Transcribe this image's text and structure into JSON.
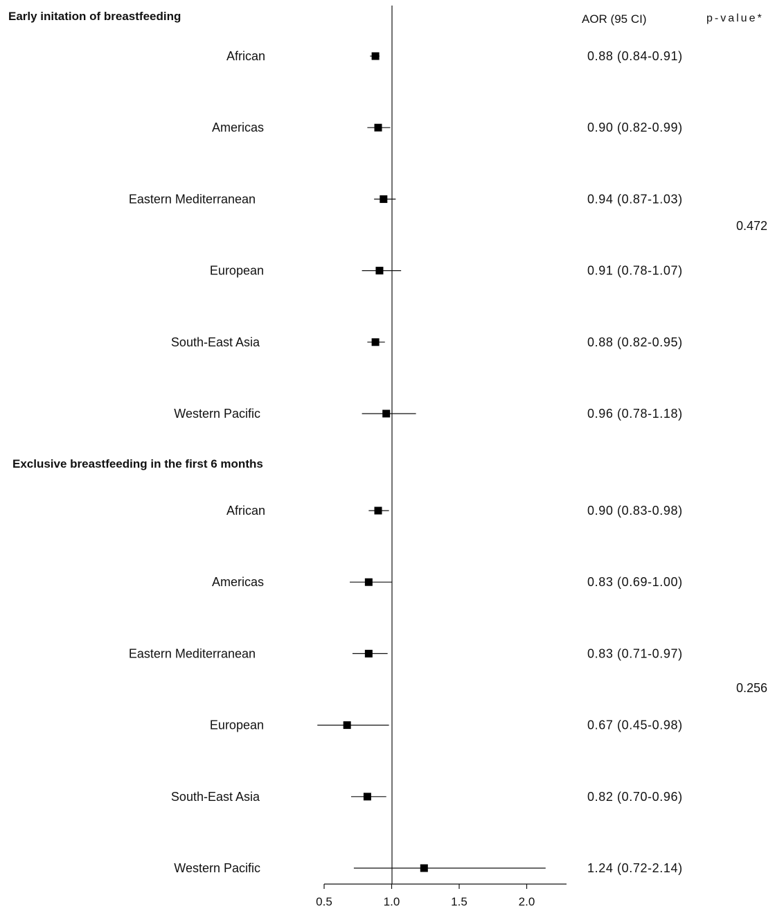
{
  "header": {
    "aor_label": "AOR (95 CI)",
    "pvalue_label": "p-value*"
  },
  "axis": {
    "ticks": [
      "0.5",
      "1.0",
      "1.5",
      "2.0"
    ]
  },
  "chart_data": {
    "type": "forest",
    "reference_line": 1.0,
    "xlim": [
      0.5,
      2.3
    ],
    "xticks": [
      0.5,
      1.0,
      1.5,
      2.0
    ],
    "groups": [
      {
        "title": "Early initation of breastfeeding",
        "p_value": "0.472",
        "rows": [
          {
            "label": "African",
            "aor": 0.88,
            "lo": 0.84,
            "hi": 0.91,
            "text": "0.88 (0.84-0.91)"
          },
          {
            "label": "Americas",
            "aor": 0.9,
            "lo": 0.82,
            "hi": 0.99,
            "text": "0.90 (0.82-0.99)"
          },
          {
            "label": "Eastern Mediterranean",
            "aor": 0.94,
            "lo": 0.87,
            "hi": 1.03,
            "text": "0.94 (0.87-1.03)"
          },
          {
            "label": "European",
            "aor": 0.91,
            "lo": 0.78,
            "hi": 1.07,
            "text": "0.91 (0.78-1.07)"
          },
          {
            "label": "South-East Asia",
            "aor": 0.88,
            "lo": 0.82,
            "hi": 0.95,
            "text": "0.88 (0.82-0.95)"
          },
          {
            "label": "Western Pacific",
            "aor": 0.96,
            "lo": 0.78,
            "hi": 1.18,
            "text": "0.96 (0.78-1.18)"
          }
        ]
      },
      {
        "title": "Exclusive breastfeeding in the first 6 months",
        "p_value": "0.256",
        "rows": [
          {
            "label": "African",
            "aor": 0.9,
            "lo": 0.83,
            "hi": 0.98,
            "text": "0.90 (0.83-0.98)"
          },
          {
            "label": "Americas",
            "aor": 0.83,
            "lo": 0.69,
            "hi": 1.0,
            "text": "0.83 (0.69-1.00)"
          },
          {
            "label": "Eastern Mediterranean",
            "aor": 0.83,
            "lo": 0.71,
            "hi": 0.97,
            "text": "0.83 (0.71-0.97)"
          },
          {
            "label": "European",
            "aor": 0.67,
            "lo": 0.45,
            "hi": 0.98,
            "text": "0.67 (0.45-0.98)"
          },
          {
            "label": "South-East Asia",
            "aor": 0.82,
            "lo": 0.7,
            "hi": 0.96,
            "text": "0.82 (0.70-0.96)"
          },
          {
            "label": "Western Pacific",
            "aor": 1.24,
            "lo": 0.72,
            "hi": 2.14,
            "text": "1.24 (0.72-2.14)"
          }
        ]
      }
    ]
  }
}
